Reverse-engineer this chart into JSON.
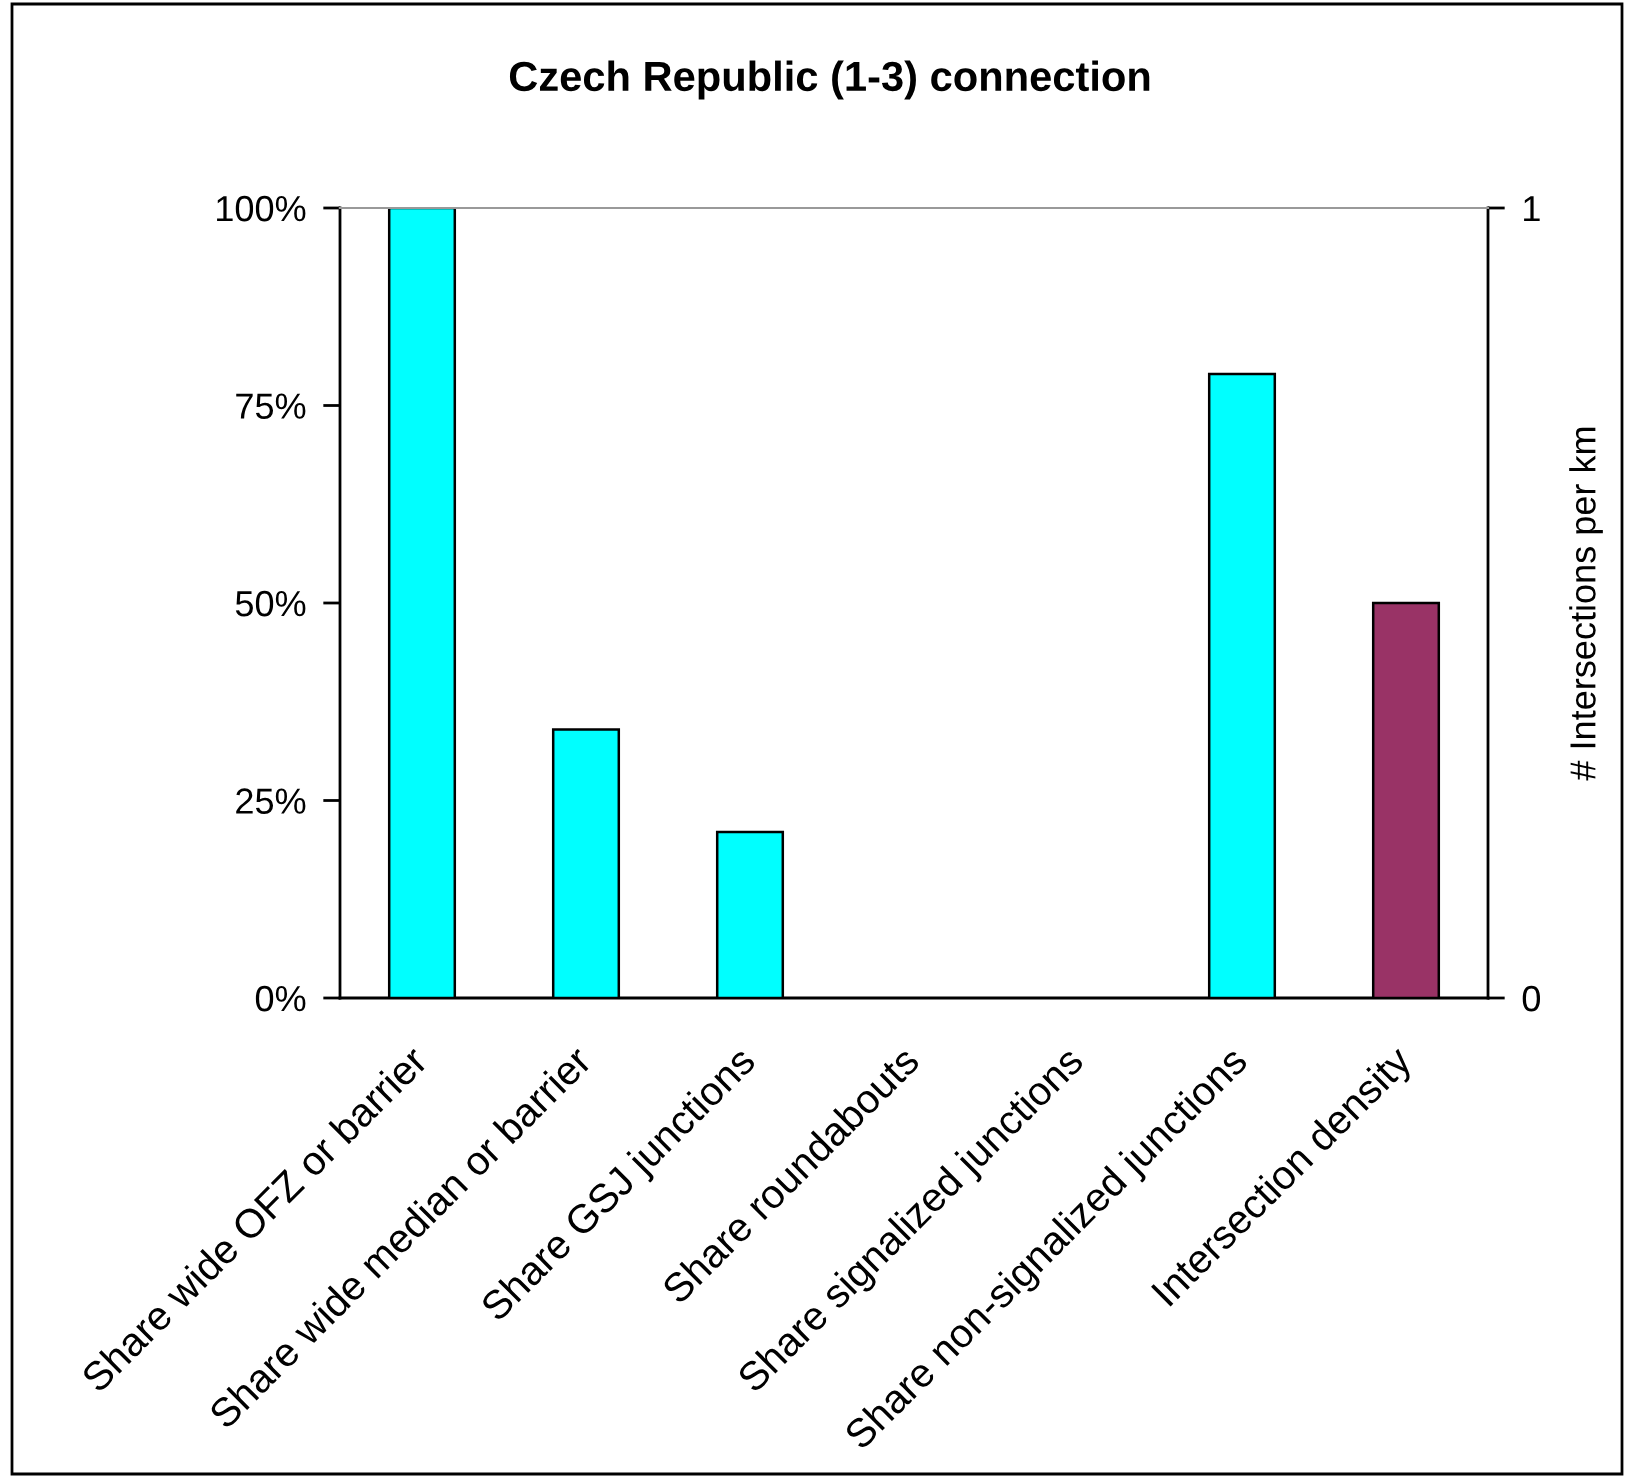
{
  "chart_data": {
    "type": "bar",
    "title": "Czech Republic (1-3) connection",
    "y2label": "# Intersections per km",
    "categories": [
      "Share wide OFZ or barrier",
      "Share wide median or barrier",
      "Share GSJ junctions",
      "Share roundabouts",
      "Share signalized junctions",
      "Share non-signalized junctions",
      "Intersection density"
    ],
    "series": [
      {
        "color": "#00ffff",
        "values": [
          100,
          34,
          21,
          0,
          0,
          79,
          null
        ]
      },
      {
        "color": "#993366",
        "axis": "y2",
        "values": [
          null,
          null,
          null,
          null,
          null,
          null,
          0.5
        ]
      }
    ],
    "ylim": [
      0,
      100
    ],
    "yticks": [
      {
        "value": 0,
        "label": "0%"
      },
      {
        "value": 25,
        "label": "25%"
      },
      {
        "value": 50,
        "label": "50%"
      },
      {
        "value": 75,
        "label": "75%"
      },
      {
        "value": 100,
        "label": "100%"
      }
    ],
    "y2lim": [
      0,
      1
    ],
    "y2ticks": [
      0,
      1
    ]
  }
}
